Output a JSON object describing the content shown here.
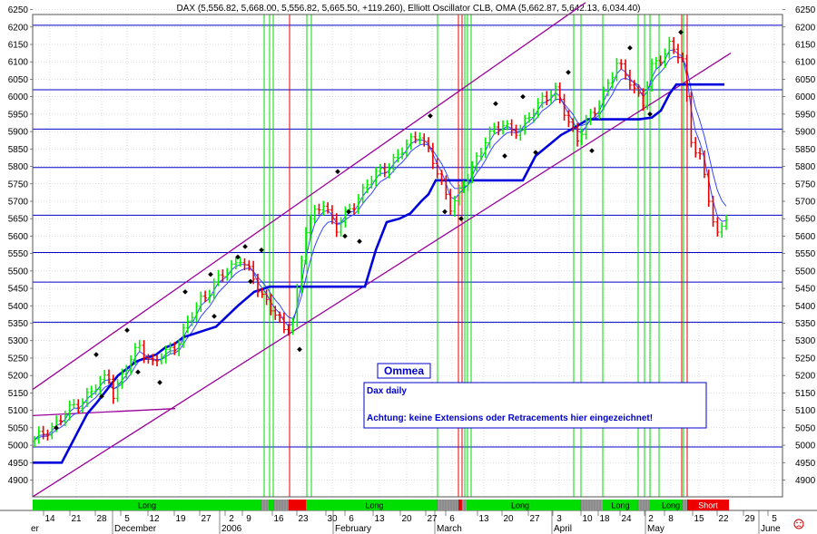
{
  "header_text": "DAX (5,556.82, 5,668.00, 5,556.82, 5,665.50, +119.260), Elliott Oscillator CLB, OMA (5,662.87, 5,642.13, 6,034.40)",
  "chart_data": {
    "type": "candlestick",
    "title": "",
    "y_ticks": [
      4900,
      4950,
      5000,
      5050,
      5100,
      5150,
      5200,
      5250,
      5300,
      5350,
      5400,
      5450,
      5500,
      5550,
      5600,
      5650,
      5700,
      5750,
      5800,
      5850,
      5900,
      5950,
      6000,
      6050,
      6100,
      6150,
      6200,
      6250
    ],
    "ylim": [
      4855,
      6270
    ],
    "x_day_labels": [
      "14",
      "21",
      "28",
      "5",
      "12",
      "19",
      "27",
      "2",
      "9",
      "16",
      "23",
      "30",
      "6",
      "13",
      "20",
      "27",
      "6",
      "13",
      "20",
      "27",
      "3",
      "10",
      "18",
      "24",
      "2",
      "8",
      "15",
      "22",
      "29",
      "5"
    ],
    "x_month_labels": [
      "er",
      "December",
      "2006",
      "February",
      "March",
      "April",
      "May",
      "June"
    ],
    "horizontal_levels": [
      6205,
      6020,
      5907,
      5797,
      5660,
      5553,
      5468,
      5353,
      4995
    ],
    "annotation_box": {
      "title": "Ommea",
      "line1": "Dax daily",
      "line2": "Achtung: keine Extensions oder Retracements hier eingezeichnet!"
    },
    "signal_labels": [
      "Long",
      "Long",
      "Long",
      "Long",
      "Long",
      "Short"
    ],
    "colors": {
      "up": "#00ee00",
      "down": "#ee0000",
      "level_line": "#0000cc",
      "channel": "#990099",
      "stop_line": "#0000dd",
      "ma": "#3344ff",
      "long_band": "#00dd00",
      "short_band": "#ee0000"
    }
  }
}
